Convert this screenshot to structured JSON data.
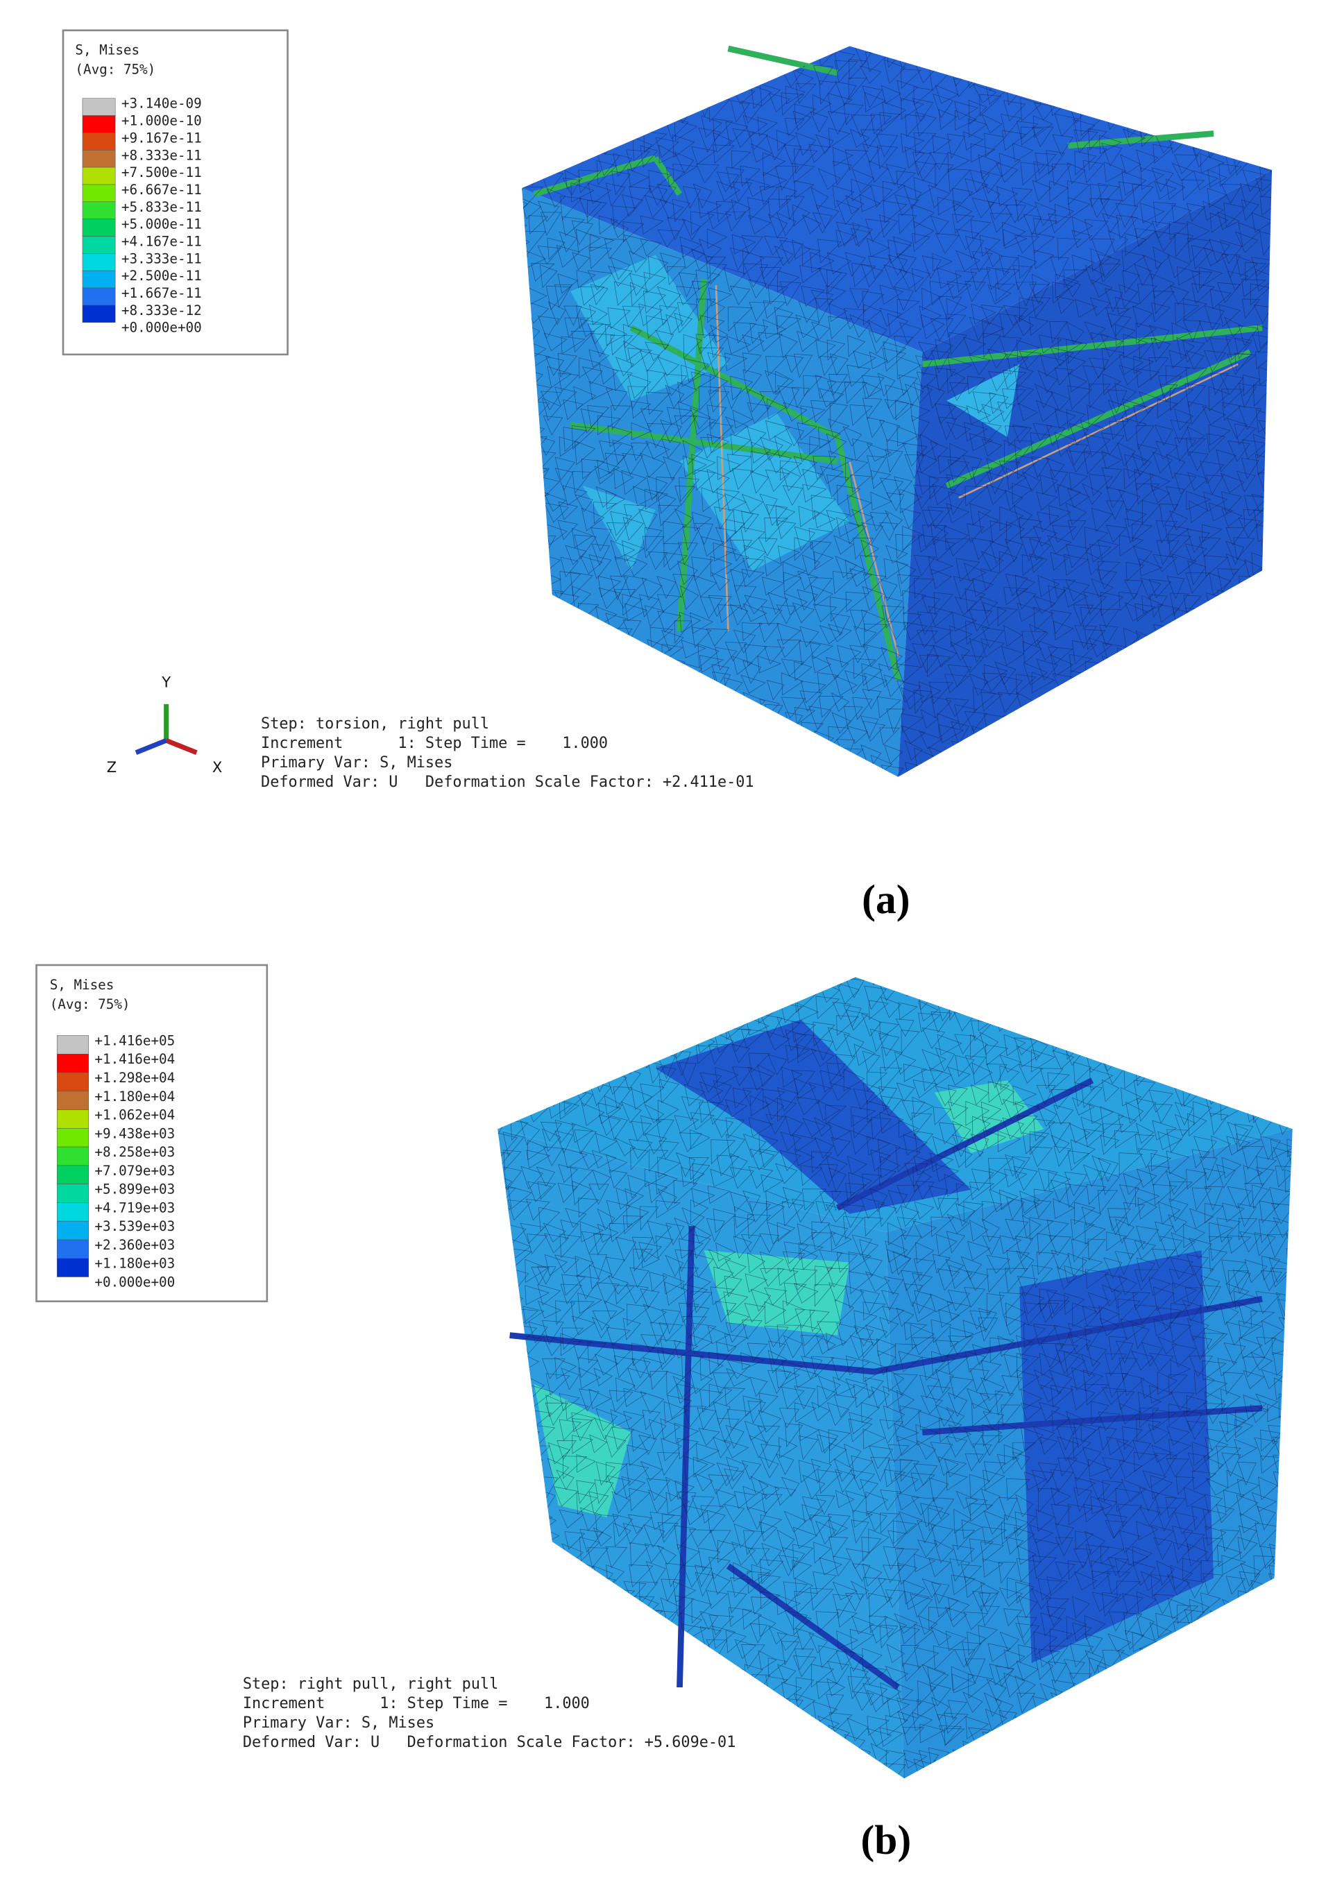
{
  "panels": [
    {
      "legend": {
        "title": [
          "S, Mises",
          "(Avg: 75%)"
        ],
        "labels": [
          "+3.140e-09",
          "+1.000e-10",
          "+9.167e-11",
          "+8.333e-11",
          "+7.500e-11",
          "+6.667e-11",
          "+5.833e-11",
          "+5.000e-11",
          "+4.167e-11",
          "+3.333e-11",
          "+2.500e-11",
          "+1.667e-11",
          "+8.333e-12",
          "+0.000e+00"
        ]
      },
      "triad": {
        "y": "Y",
        "z": "Z",
        "x": "X"
      },
      "info": [
        "Step: torsion, right pull",
        "Increment      1: Step Time =    1.000",
        "Primary Var: S, Mises",
        "Deformed Var: U   Deformation Scale Factor: +2.411e-01"
      ],
      "caption": "(a)"
    },
    {
      "legend": {
        "title": [
          "S, Mises",
          "(Avg: 75%)"
        ],
        "labels": [
          "+1.416e+05",
          "+1.416e+04",
          "+1.298e+04",
          "+1.180e+04",
          "+1.062e+04",
          "+9.438e+03",
          "+8.258e+03",
          "+7.079e+03",
          "+5.899e+03",
          "+4.719e+03",
          "+3.539e+03",
          "+2.360e+03",
          "+1.180e+03",
          "+0.000e+00"
        ]
      },
      "info": [
        "Step: right pull, right pull",
        "Increment      1: Step Time =    1.000",
        "Primary Var: S, Mises",
        "Deformed Var: U   Deformation Scale Factor: +5.609e-01"
      ],
      "caption": "(b)"
    }
  ]
}
